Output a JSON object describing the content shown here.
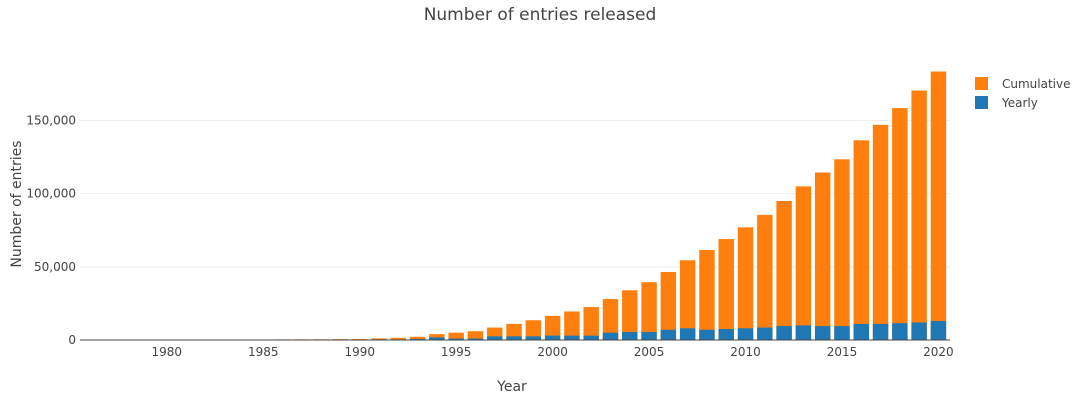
{
  "chart_data": {
    "type": "bar",
    "title": "Number of entries released",
    "xlabel": "Year",
    "ylabel": "Number of entries",
    "mode": "overlay",
    "x": [
      1976,
      1977,
      1978,
      1979,
      1980,
      1981,
      1982,
      1983,
      1984,
      1985,
      1986,
      1987,
      1988,
      1989,
      1990,
      1991,
      1992,
      1993,
      1994,
      1995,
      1996,
      1997,
      1998,
      1999,
      2000,
      2001,
      2002,
      2003,
      2004,
      2005,
      2006,
      2007,
      2008,
      2009,
      2010,
      2011,
      2012,
      2013,
      2014,
      2015,
      2016,
      2017,
      2018,
      2019,
      2020
    ],
    "xlim": [
      1975.5,
      2020.6
    ],
    "ylim": [
      0,
      190000
    ],
    "x_ticks": [
      1980,
      1985,
      1990,
      1995,
      2000,
      2005,
      2010,
      2015,
      2020
    ],
    "y_ticks": [
      0,
      50000,
      100000,
      150000
    ],
    "y_tick_labels": [
      "0",
      "50,000",
      "100,000",
      "150,000"
    ],
    "grid": true,
    "legend_position": "top-right",
    "series": [
      {
        "name": "Cumulative",
        "color": "#ff7f0e",
        "values": [
          20,
          40,
          60,
          80,
          110,
          150,
          200,
          250,
          300,
          350,
          400,
          450,
          500,
          600,
          700,
          1100,
          1500,
          2200,
          4000,
          5000,
          6000,
          8500,
          11000,
          13500,
          16500,
          19500,
          22500,
          28000,
          34000,
          39500,
          46500,
          54500,
          61500,
          69000,
          77000,
          85500,
          95000,
          105000,
          114500,
          123500,
          136500,
          147000,
          158500,
          170500,
          183500
        ]
      },
      {
        "name": "Yearly",
        "color": "#1f77b4",
        "values": [
          20,
          20,
          20,
          20,
          30,
          40,
          50,
          50,
          50,
          50,
          50,
          50,
          50,
          100,
          100,
          400,
          400,
          700,
          1800,
          1000,
          1000,
          2500,
          2500,
          2500,
          3000,
          3000,
          3000,
          5000,
          5500,
          5500,
          7000,
          8000,
          7000,
          7500,
          8000,
          8500,
          9500,
          10000,
          9500,
          9500,
          11000,
          11000,
          11500,
          12000,
          13000
        ]
      }
    ]
  }
}
